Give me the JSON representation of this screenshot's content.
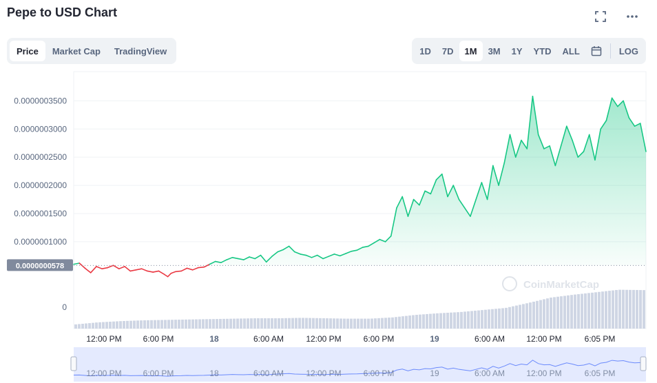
{
  "header": {
    "title": "Pepe to USD Chart",
    "fullscreen_icon": "fullscreen-icon",
    "more_icon": "more-horizontal-icon"
  },
  "tabs": [
    {
      "label": "Price",
      "active": true
    },
    {
      "label": "Market Cap",
      "active": false
    },
    {
      "label": "TradingView",
      "active": false
    }
  ],
  "ranges": [
    {
      "label": "1D",
      "active": false
    },
    {
      "label": "7D",
      "active": false
    },
    {
      "label": "1M",
      "active": true
    },
    {
      "label": "3M",
      "active": false
    },
    {
      "label": "1Y",
      "active": false
    },
    {
      "label": "YTD",
      "active": false
    },
    {
      "label": "ALL",
      "active": false
    }
  ],
  "calendar_icon": "calendar-icon",
  "log_label": "LOG",
  "watermark": "CoinMarketCap",
  "colors": {
    "up": "#16c784",
    "down": "#ea3943",
    "volume": "#cfd6e4",
    "navigator": "#e4eafe",
    "baseline_tag": "#808a9d"
  },
  "chart_data": {
    "type": "line",
    "title": "Pepe to USD Chart",
    "baseline": 5.78e-08,
    "baseline_label": "0.0000000578",
    "ylim": [
      4e-08,
      3.7e-07
    ],
    "yticks": [
      {
        "v": 3.5e-07,
        "label": "0.0000003500"
      },
      {
        "v": 3e-07,
        "label": "0.0000003000"
      },
      {
        "v": 2.5e-07,
        "label": "0.0000002500"
      },
      {
        "v": 2e-07,
        "label": "0.0000002000"
      },
      {
        "v": 1.5e-07,
        "label": "0.0000001500"
      },
      {
        "v": 1e-07,
        "label": "0.0000001000"
      }
    ],
    "volume_zero_label": "0",
    "xlim": [
      10.0,
      60.5
    ],
    "xticks": [
      {
        "x": 12,
        "label": "12:00 PM",
        "bold": false
      },
      {
        "x": 18,
        "label": "6:00 PM",
        "bold": false
      },
      {
        "x": 24,
        "label": "18",
        "bold": true
      },
      {
        "x": 30,
        "label": "6:00 AM",
        "bold": false
      },
      {
        "x": 36,
        "label": "12:00 PM",
        "bold": false
      },
      {
        "x": 42,
        "label": "6:00 PM",
        "bold": false
      },
      {
        "x": 48,
        "label": "19",
        "bold": true
      },
      {
        "x": 54,
        "label": "6:00 AM",
        "bold": false
      },
      {
        "x": 60,
        "label": "12:00 PM",
        "bold": false
      },
      {
        "x": 66,
        "label": "6:05 PM",
        "bold": false
      }
    ],
    "x_unit": "hours since 17 00:00",
    "price": [
      [
        10.0,
        6e-08
      ],
      [
        10.5,
        6.2e-08
      ],
      [
        11.0,
        5.3e-08
      ],
      [
        11.5,
        4.5e-08
      ],
      [
        12.0,
        5.6e-08
      ],
      [
        12.5,
        5.2e-08
      ],
      [
        13.0,
        5.4e-08
      ],
      [
        13.5,
        5.8e-08
      ],
      [
        14.0,
        5.2e-08
      ],
      [
        14.5,
        5.6e-08
      ],
      [
        15.0,
        4.8e-08
      ],
      [
        15.5,
        5e-08
      ],
      [
        16.0,
        5.2e-08
      ],
      [
        16.5,
        4.8e-08
      ],
      [
        17.0,
        4.6e-08
      ],
      [
        17.5,
        4.8e-08
      ],
      [
        18.0,
        4.2e-08
      ],
      [
        18.3,
        3.8e-08
      ],
      [
        18.6,
        4.4e-08
      ],
      [
        19.0,
        4.7e-08
      ],
      [
        19.5,
        4.8e-08
      ],
      [
        20.0,
        5.3e-08
      ],
      [
        20.5,
        5e-08
      ],
      [
        21.0,
        5.4e-08
      ],
      [
        21.5,
        5.5e-08
      ],
      [
        22.0,
        6e-08
      ],
      [
        22.5,
        6.5e-08
      ],
      [
        23.0,
        6.3e-08
      ],
      [
        23.5,
        6.8e-08
      ],
      [
        24.0,
        7.2e-08
      ],
      [
        24.5,
        7e-08
      ],
      [
        25.0,
        6.8e-08
      ],
      [
        25.5,
        7.3e-08
      ],
      [
        26.0,
        7e-08
      ],
      [
        26.5,
        7.6e-08
      ],
      [
        27.0,
        6.4e-08
      ],
      [
        27.5,
        7.4e-08
      ],
      [
        28.0,
        8.2e-08
      ],
      [
        28.5,
        8.6e-08
      ],
      [
        29.0,
        9.2e-08
      ],
      [
        29.5,
        8.2e-08
      ],
      [
        30.0,
        7.8e-08
      ],
      [
        30.5,
        7.6e-08
      ],
      [
        31.0,
        7.2e-08
      ],
      [
        31.5,
        7.6e-08
      ],
      [
        32.0,
        7e-08
      ],
      [
        32.5,
        7.4e-08
      ],
      [
        33.0,
        7.8e-08
      ],
      [
        33.5,
        7.5e-08
      ],
      [
        34.0,
        7.9e-08
      ],
      [
        34.5,
        8.3e-08
      ],
      [
        35.0,
        8.5e-08
      ],
      [
        35.5,
        9e-08
      ],
      [
        36.0,
        9.2e-08
      ],
      [
        36.5,
        9.8e-08
      ],
      [
        37.0,
        1.04e-07
      ],
      [
        37.5,
        1e-07
      ],
      [
        38.0,
        1.1e-07
      ],
      [
        38.5,
        1.6e-07
      ],
      [
        39.0,
        1.8e-07
      ],
      [
        39.5,
        1.45e-07
      ],
      [
        40.0,
        1.75e-07
      ],
      [
        40.5,
        1.65e-07
      ],
      [
        41.0,
        1.9e-07
      ],
      [
        41.5,
        1.85e-07
      ],
      [
        42.0,
        2.1e-07
      ],
      [
        42.5,
        2.2e-07
      ],
      [
        43.0,
        1.8e-07
      ],
      [
        43.5,
        2e-07
      ],
      [
        44.0,
        1.75e-07
      ],
      [
        44.5,
        1.6e-07
      ],
      [
        45.0,
        1.45e-07
      ],
      [
        45.5,
        1.75e-07
      ],
      [
        46.0,
        2.05e-07
      ],
      [
        46.5,
        1.75e-07
      ],
      [
        47.0,
        2.35e-07
      ],
      [
        47.5,
        2e-07
      ],
      [
        48.0,
        2.4e-07
      ],
      [
        48.5,
        2.9e-07
      ],
      [
        49.0,
        2.5e-07
      ],
      [
        49.5,
        2.8e-07
      ],
      [
        50.0,
        2.65e-07
      ],
      [
        50.5,
        3.58e-07
      ],
      [
        51.0,
        2.9e-07
      ],
      [
        51.5,
        2.65e-07
      ],
      [
        52.0,
        2.7e-07
      ],
      [
        52.5,
        2.35e-07
      ],
      [
        53.0,
        2.7e-07
      ],
      [
        53.5,
        3.05e-07
      ],
      [
        54.0,
        2.8e-07
      ],
      [
        54.5,
        2.5e-07
      ],
      [
        55.0,
        2.6e-07
      ],
      [
        55.5,
        2.9e-07
      ],
      [
        56.0,
        2.45e-07
      ],
      [
        56.5,
        3e-07
      ],
      [
        57.0,
        3.15e-07
      ],
      [
        57.5,
        3.55e-07
      ],
      [
        58.0,
        3.4e-07
      ],
      [
        58.5,
        3.5e-07
      ],
      [
        59.0,
        3.2e-07
      ],
      [
        59.5,
        3.05e-07
      ],
      [
        60.0,
        3.1e-07
      ],
      [
        60.5,
        2.6e-07
      ]
    ],
    "volume": [
      [
        10.0,
        0.1
      ],
      [
        12.0,
        0.15
      ],
      [
        14.0,
        0.18
      ],
      [
        16.0,
        0.2
      ],
      [
        18.0,
        0.21
      ],
      [
        20.0,
        0.22
      ],
      [
        22.0,
        0.23
      ],
      [
        24.0,
        0.24
      ],
      [
        26.0,
        0.25
      ],
      [
        28.0,
        0.25
      ],
      [
        30.0,
        0.26
      ],
      [
        32.0,
        0.25
      ],
      [
        34.0,
        0.24
      ],
      [
        36.0,
        0.24
      ],
      [
        38.0,
        0.27
      ],
      [
        40.0,
        0.33
      ],
      [
        42.0,
        0.37
      ],
      [
        44.0,
        0.4
      ],
      [
        46.0,
        0.45
      ],
      [
        48.0,
        0.5
      ],
      [
        50.0,
        0.62
      ],
      [
        52.0,
        0.75
      ],
      [
        54.0,
        0.82
      ],
      [
        56.0,
        0.88
      ],
      [
        58.0,
        0.94
      ],
      [
        60.5,
        0.93
      ]
    ]
  },
  "navigator": {
    "xticks": [
      "12:00 PM",
      "6:00 PM",
      "18",
      "6:00 AM",
      "12:00 PM",
      "6:00 PM",
      "19",
      "6:00 AM",
      "12:00 PM",
      "6:05 PM"
    ]
  }
}
